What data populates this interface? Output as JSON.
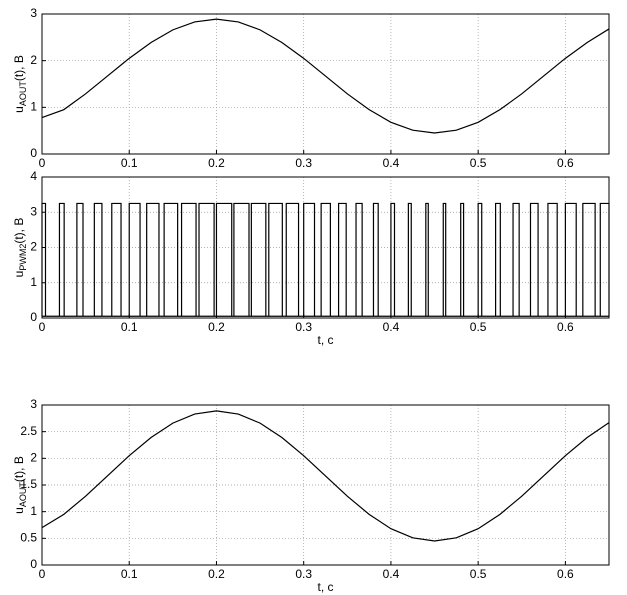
{
  "chart_data": [
    {
      "type": "line",
      "ylabel": [
        "u",
        "AOUT",
        "(t), B"
      ],
      "x": [
        0,
        0.025,
        0.05,
        0.075,
        0.1,
        0.125,
        0.15,
        0.175,
        0.2,
        0.225,
        0.25,
        0.275,
        0.3,
        0.325,
        0.35,
        0.375,
        0.4,
        0.425,
        0.45,
        0.475,
        0.5,
        0.525,
        0.55,
        0.575,
        0.6,
        0.625,
        0.65
      ],
      "values": [
        0.78,
        0.95,
        1.29,
        1.67,
        2.05,
        2.39,
        2.66,
        2.83,
        2.89,
        2.83,
        2.66,
        2.39,
        2.05,
        1.67,
        1.29,
        0.95,
        0.68,
        0.51,
        0.45,
        0.51,
        0.68,
        0.95,
        1.29,
        1.67,
        2.05,
        2.39,
        2.68
      ],
      "color": "#000000",
      "xlim": [
        0,
        0.65
      ],
      "xticks": [
        0,
        0.1,
        0.2,
        0.3,
        0.4,
        0.5,
        0.6
      ],
      "ylim": [
        0,
        3
      ],
      "yticks": [
        0,
        1,
        2,
        3
      ],
      "grid": true
    },
    {
      "type": "pwm",
      "ylabel": [
        "u",
        "PWM2",
        "(t), B"
      ],
      "xlabel": "t, c",
      "pulse_starts": [
        0,
        0.02,
        0.04,
        0.06,
        0.08,
        0.1,
        0.12,
        0.14,
        0.16,
        0.18,
        0.2,
        0.22,
        0.24,
        0.26,
        0.28,
        0.3,
        0.32,
        0.34,
        0.36,
        0.38,
        0.4,
        0.42,
        0.44,
        0.46,
        0.48,
        0.5,
        0.52,
        0.54,
        0.56,
        0.58,
        0.6,
        0.62,
        0.64
      ],
      "pulse_ends": [
        0.004,
        0.0254,
        0.047,
        0.0687,
        0.0906,
        0.1124,
        0.1341,
        0.1555,
        0.1766,
        0.1973,
        0.2175,
        0.2373,
        0.2566,
        0.2755,
        0.2941,
        0.3124,
        0.3306,
        0.3487,
        0.367,
        0.3854,
        0.4041,
        0.4233,
        0.4428,
        0.4628,
        0.4833,
        0.5041,
        0.5254,
        0.547,
        0.5687,
        0.5906,
        0.6124,
        0.6341,
        0.65
      ],
      "high": 3.25,
      "low": 0.05,
      "color": "#000000",
      "xlim": [
        0,
        0.65
      ],
      "xticks": [
        0,
        0.1,
        0.2,
        0.3,
        0.4,
        0.5,
        0.6
      ],
      "ylim": [
        0,
        4
      ],
      "yticks": [
        0,
        1,
        2,
        3,
        4
      ],
      "grid": true
    },
    {
      "type": "line",
      "ylabel": [
        "u",
        "AOUT",
        "(t), B"
      ],
      "xlabel": "t, c",
      "x": [
        0,
        0.025,
        0.05,
        0.075,
        0.1,
        0.125,
        0.15,
        0.175,
        0.2,
        0.225,
        0.25,
        0.275,
        0.3,
        0.325,
        0.35,
        0.375,
        0.4,
        0.425,
        0.45,
        0.475,
        0.5,
        0.525,
        0.55,
        0.575,
        0.6,
        0.625,
        0.65
      ],
      "values": [
        0.7,
        0.95,
        1.29,
        1.67,
        2.05,
        2.39,
        2.66,
        2.83,
        2.89,
        2.83,
        2.66,
        2.39,
        2.05,
        1.67,
        1.29,
        0.95,
        0.68,
        0.51,
        0.45,
        0.51,
        0.68,
        0.95,
        1.29,
        1.67,
        2.05,
        2.39,
        2.67
      ],
      "color": "#000000",
      "xlim": [
        0,
        0.65
      ],
      "xticks": [
        0,
        0.1,
        0.2,
        0.3,
        0.4,
        0.5,
        0.6
      ],
      "ylim": [
        0,
        3
      ],
      "yticks": [
        0,
        0.5,
        1,
        1.5,
        2,
        2.5,
        3
      ],
      "grid": true
    }
  ]
}
